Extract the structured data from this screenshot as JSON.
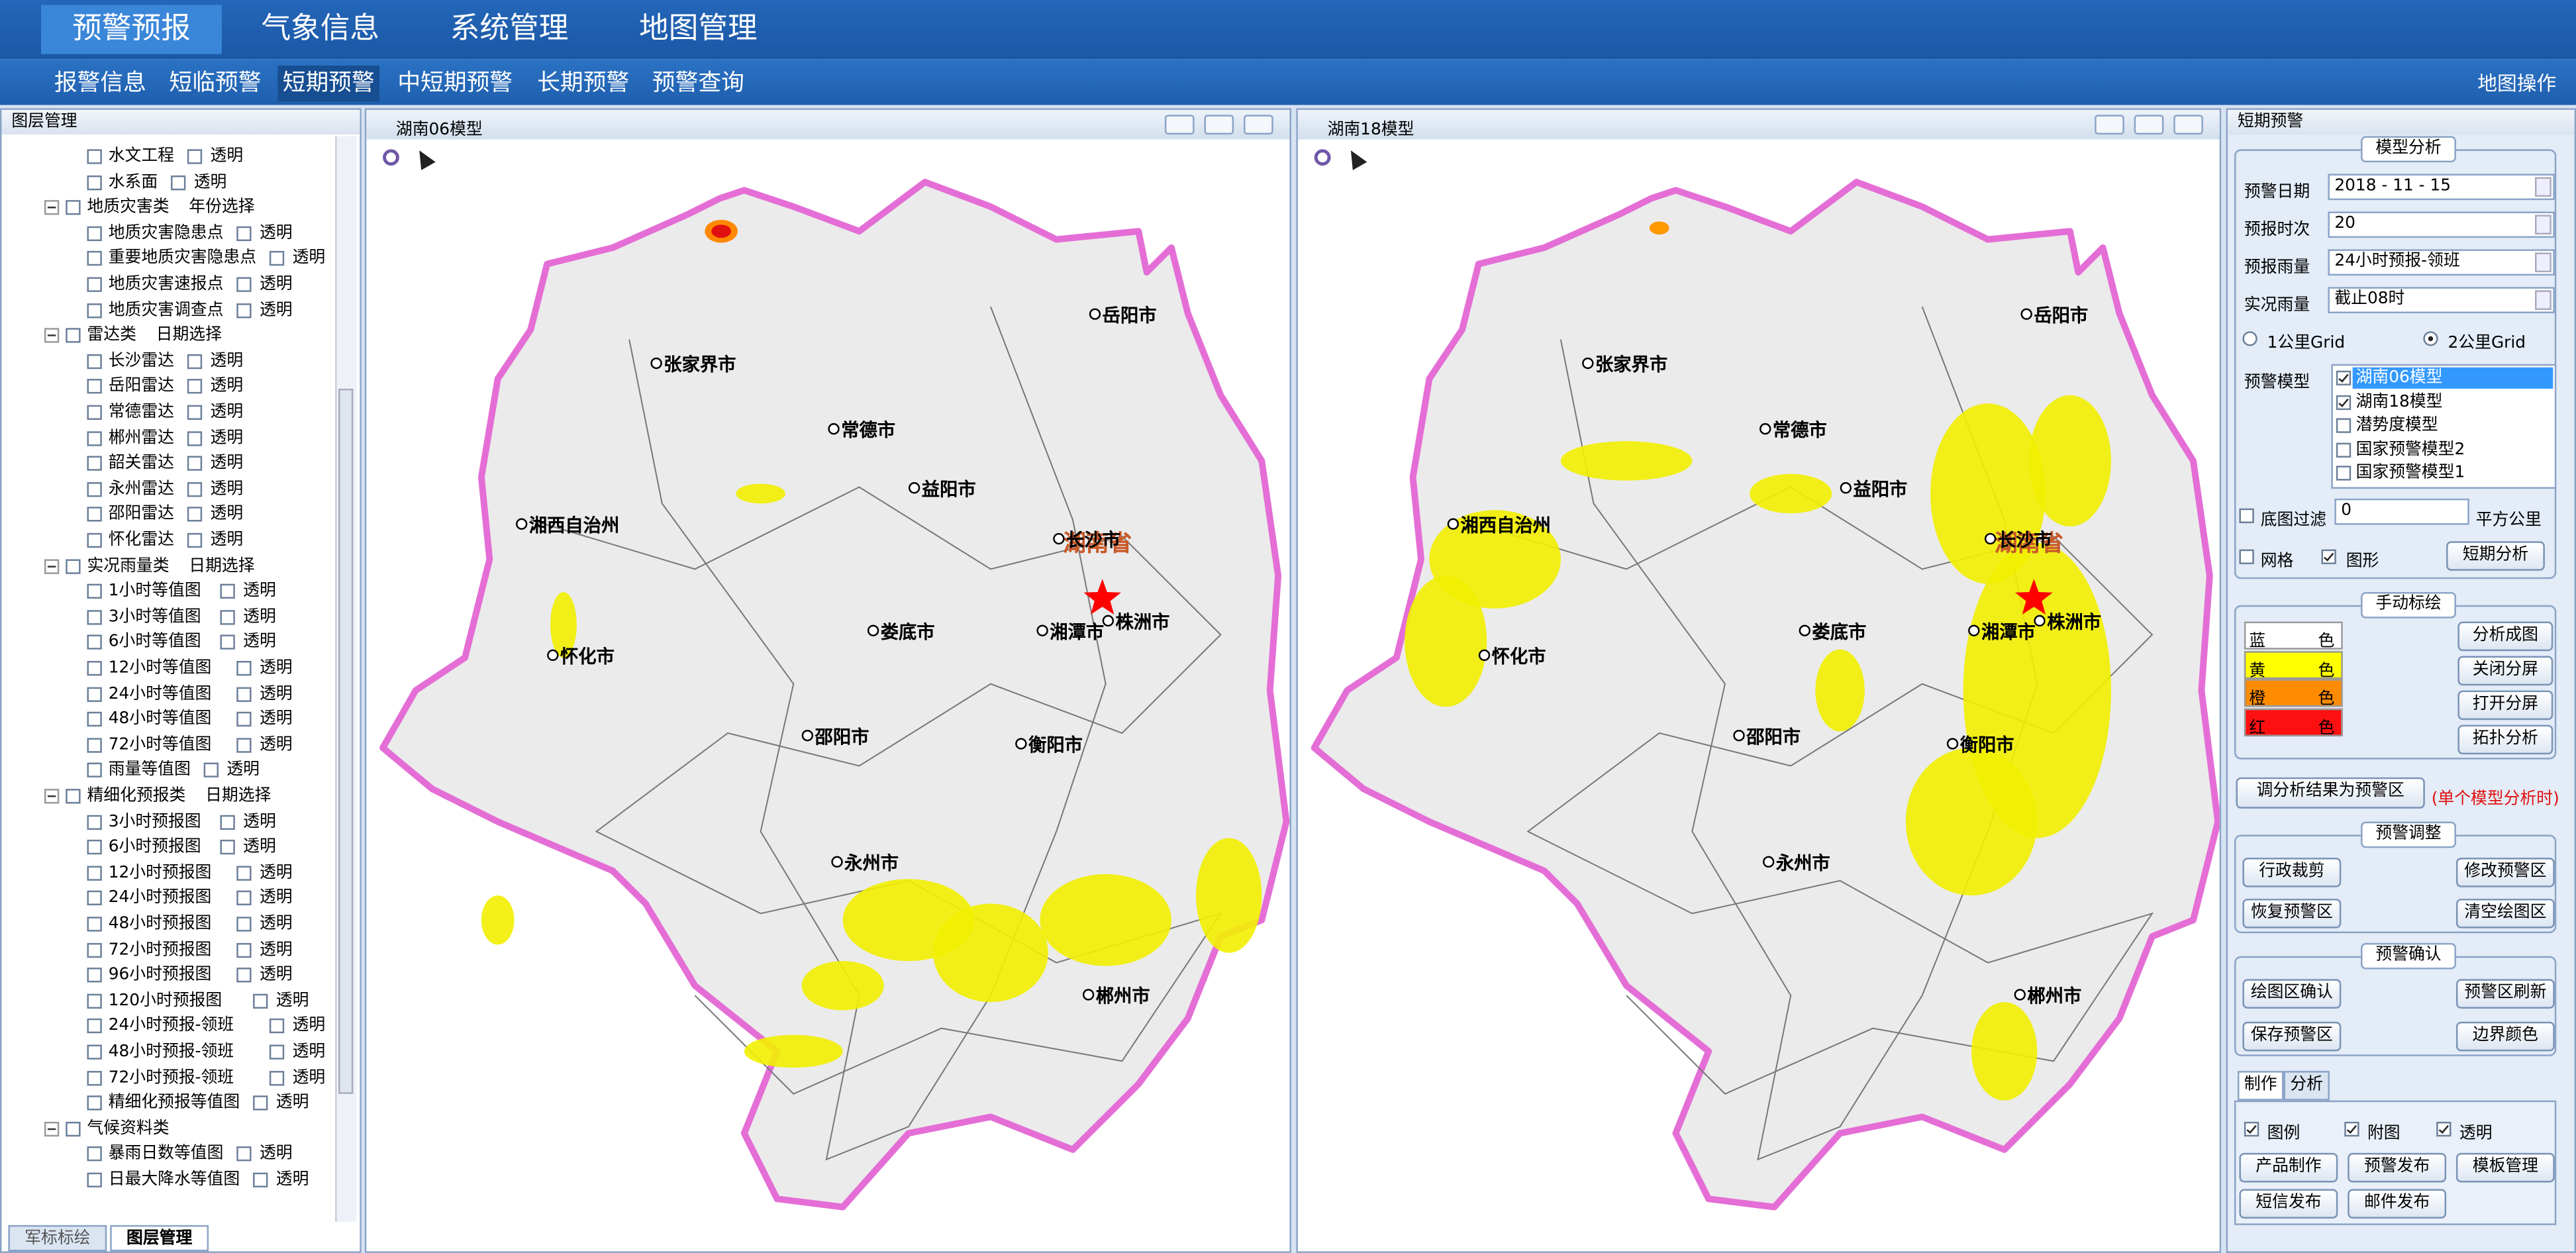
{
  "top_nav": [
    "预警预报",
    "气象信息",
    "系统管理",
    "地图管理"
  ],
  "sub_nav": [
    "报警信息",
    "短临预警",
    "短期预警",
    "中短期预警",
    "长期预警",
    "预警查询"
  ],
  "map_ops": "地图操作",
  "layer_panel": {
    "title": "图层管理",
    "items": [
      {
        "label": "水文工程",
        "option": "透明"
      },
      {
        "label": "水系面",
        "option": "透明"
      },
      {
        "label": "地质灾害类",
        "option": "年份选择",
        "group": true
      },
      {
        "label": "地质灾害隐患点",
        "option": "透明"
      },
      {
        "label": "重要地质灾害隐患点",
        "option": "透明"
      },
      {
        "label": "地质灾害速报点",
        "option": "透明"
      },
      {
        "label": "地质灾害调查点",
        "option": "透明"
      },
      {
        "label": "雷达类",
        "option": "日期选择",
        "group": true
      },
      {
        "label": "长沙雷达",
        "option": "透明"
      },
      {
        "label": "岳阳雷达",
        "option": "透明"
      },
      {
        "label": "常德雷达",
        "option": "透明"
      },
      {
        "label": "郴州雷达",
        "option": "透明"
      },
      {
        "label": "韶关雷达",
        "option": "透明"
      },
      {
        "label": "永州雷达",
        "option": "透明"
      },
      {
        "label": "邵阳雷达",
        "option": "透明"
      },
      {
        "label": "怀化雷达",
        "option": "透明"
      },
      {
        "label": "实况雨量类",
        "option": "日期选择",
        "group": true
      },
      {
        "label": "1小时等值图",
        "option": "透明"
      },
      {
        "label": "3小时等值图",
        "option": "透明"
      },
      {
        "label": "6小时等值图",
        "option": "透明"
      },
      {
        "label": "12小时等值图",
        "option": "透明"
      },
      {
        "label": "24小时等值图",
        "option": "透明"
      },
      {
        "label": "48小时等值图",
        "option": "透明"
      },
      {
        "label": "72小时等值图",
        "option": "透明"
      },
      {
        "label": "雨量等值图",
        "option": "透明"
      },
      {
        "label": "精细化预报类",
        "option": "日期选择",
        "group": true
      },
      {
        "label": "3小时预报图",
        "option": "透明"
      },
      {
        "label": "6小时预报图",
        "option": "透明"
      },
      {
        "label": "12小时预报图",
        "option": "透明"
      },
      {
        "label": "24小时预报图",
        "option": "透明"
      },
      {
        "label": "48小时预报图",
        "option": "透明"
      },
      {
        "label": "72小时预报图",
        "option": "透明"
      },
      {
        "label": "96小时预报图",
        "option": "透明"
      },
      {
        "label": "120小时预报图",
        "option": "透明"
      },
      {
        "label": "24小时预报-领班",
        "option": "透明"
      },
      {
        "label": "48小时预报-领班",
        "option": "透明"
      },
      {
        "label": "72小时预报-领班",
        "option": "透明"
      },
      {
        "label": "精细化预报等值图",
        "option": "透明"
      },
      {
        "label": "气候资料类",
        "group": true
      },
      {
        "label": "暴雨日数等值图",
        "option": "透明"
      },
      {
        "label": "日最大降水等值图",
        "option": "透明"
      }
    ]
  },
  "bottom_tabs": [
    "军标标绘",
    "图层管理"
  ],
  "maps": [
    {
      "title": "湖南06模型",
      "province": "湖南省",
      "cities": [
        "岳阳市",
        "张家界市",
        "常德市",
        "益阳市",
        "湘西自治州",
        "长沙市",
        "湘潭市",
        "株洲市",
        "娄底市",
        "怀化市",
        "邵阳市",
        "衡阳市",
        "永州市",
        "郴州市"
      ]
    },
    {
      "title": "湖南18模型",
      "province": "湖南省",
      "cities": [
        "岳阳市",
        "张家界市",
        "常德市",
        "益阳市",
        "湘西自治州",
        "长沙市",
        "湘潭市",
        "株洲市",
        "娄底市",
        "怀化市",
        "邵阳市",
        "衡阳市",
        "永州市",
        "郴州市"
      ]
    }
  ],
  "right_panel": {
    "title": "短期预警",
    "model_analysis": {
      "title": "模型分析",
      "fields": [
        {
          "label": "预警日期",
          "value": "2018 - 11 - 15"
        },
        {
          "label": "预报时次",
          "value": "20"
        },
        {
          "label": "预报雨量",
          "value": "24小时预报-领班"
        },
        {
          "label": "实况雨量",
          "value": "截止08时"
        }
      ],
      "radios": [
        {
          "label": "1公里Grid"
        },
        {
          "label": "2公里Grid",
          "checked": true
        }
      ],
      "model_label": "预警模型",
      "models": [
        {
          "label": "湖南06模型",
          "checked": true
        },
        {
          "label": "湖南18模型",
          "checked": true
        },
        {
          "label": "潜势度模型"
        },
        {
          "label": "国家预警模型2"
        },
        {
          "label": "国家预警模型1"
        }
      ],
      "filter_label": "底图过滤",
      "filter_value": "0",
      "filter_unit": "平方公里",
      "grid_label": "网格",
      "shape_label": "图形",
      "button": "短期分析"
    },
    "manual": {
      "title": "手动标绘",
      "legend": [
        {
          "label": "蓝",
          "suffix": "色",
          "color": "#ffffff"
        },
        {
          "label": "黄",
          "suffix": "色",
          "color": "#ffff00"
        },
        {
          "label": "橙",
          "suffix": "色",
          "color": "#ff8c00"
        },
        {
          "label": "红",
          "suffix": "色",
          "color": "#ff1010"
        }
      ],
      "buttons": [
        "分析成图",
        "关闭分屏",
        "打开分屏",
        "拓扑分析"
      ]
    },
    "convert_button": "调分析结果为预警区",
    "convert_note": "(单个模型分析时)",
    "adjust": {
      "title": "预警调整",
      "buttons": [
        "行政裁剪",
        "修改预警区",
        "恢复预警区",
        "清空绘图区"
      ]
    },
    "confirm": {
      "title": "预警确认",
      "buttons": [
        "绘图区确认",
        "预警区刷新",
        "保存预警区",
        "边界颜色"
      ]
    },
    "tabs": [
      "制作",
      "分析"
    ],
    "checks": [
      "图例",
      "附图",
      "透明"
    ],
    "actions": [
      "产品制作",
      "预警发布",
      "模板管理",
      "短信发布",
      "邮件发布"
    ]
  }
}
